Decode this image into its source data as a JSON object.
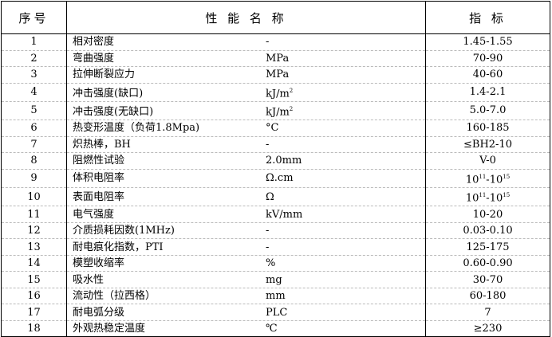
{
  "header": {
    "no": "序号",
    "name": "性 能 名 称",
    "value": "指 标"
  },
  "rows": [
    {
      "no": "1",
      "name": "相对密度",
      "unit": "-",
      "value": "1.45-1.55"
    },
    {
      "no": "2",
      "name": "弯曲强度",
      "unit": "MPa",
      "value": "70-90"
    },
    {
      "no": "3",
      "name": "拉伸断裂应力",
      "unit": "MPa",
      "value": "40-60"
    },
    {
      "no": "4",
      "name": "冲击强度(缺口)",
      "unit": "kJ/m",
      "unit_sup": "2",
      "value": "1.4-2.1"
    },
    {
      "no": "5",
      "name": "冲击强度(无缺口)",
      "unit": "kJ/m",
      "unit_sup": "2",
      "value": "5.0-7.0"
    },
    {
      "no": "6",
      "name": "热变形温度（负荷1.8Mpa)",
      "unit": "°C",
      "value": "160-185"
    },
    {
      "no": "7",
      "name": "炽热棒，BH",
      "unit": "-",
      "value": "≤BH2-10"
    },
    {
      "no": "8",
      "name": "阻燃性试验",
      "unit": "2.0mm",
      "value": "V-0"
    },
    {
      "no": "9",
      "name": "体积电阻率",
      "unit": "Ω.cm",
      "value": "10",
      "value_sup": "11",
      "value2": "-10",
      "value2_sup": "15"
    },
    {
      "no": "10",
      "name": "表面电阻率",
      "unit": "Ω",
      "value": "10",
      "value_sup": "11",
      "value2": "-10",
      "value2_sup": "15"
    },
    {
      "no": "11",
      "name": "电气强度",
      "unit": "kV/mm",
      "value": "10-20"
    },
    {
      "no": "12",
      "name": "介质损耗因数(1MHz)",
      "unit": "-",
      "value": "0.03-0.10"
    },
    {
      "no": "13",
      "name": "耐电痕化指数，PTI",
      "unit": "-",
      "value": "125-175"
    },
    {
      "no": "14",
      "name": "模塑收缩率",
      "unit": "%",
      "value": "0.60-0.90"
    },
    {
      "no": "15",
      "name": "吸水性",
      "unit": "mg",
      "value": "30-70"
    },
    {
      "no": "16",
      "name": "流动性（拉西格）",
      "unit": "mm",
      "value": "60-180"
    },
    {
      "no": "17",
      "name": "耐电弧分级",
      "unit": "PLC",
      "value": "7"
    },
    {
      "no": "18",
      "name": "外观热稳定温度",
      "unit": "℃",
      "value": "≥230"
    }
  ]
}
